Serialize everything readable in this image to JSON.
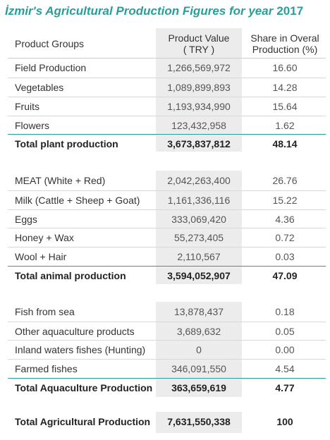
{
  "title": "İzmir's Agricultural Production Figures for year",
  "year": "2017",
  "header": {
    "groups": "Product Groups",
    "value_line1": "Product Value",
    "value_line2": "( TRY )",
    "share_line1": "Share in Overal",
    "share_line2": "Production (%)"
  },
  "rows": [
    {
      "name": "Field Production",
      "value": "1,266,569,972",
      "share": "16.60"
    },
    {
      "name": "Vegetables",
      "value": "1,089,899,893",
      "share": "14.28"
    },
    {
      "name": "Fruits",
      "value": "1,193,934,990",
      "share": "15.64"
    },
    {
      "name": "Flowers",
      "value": "123,432,958",
      "share": "1.62"
    },
    {
      "name": "Total plant production",
      "value": "3,673,837,812",
      "share": "48.14"
    },
    {
      "name": "MEAT (White + Red)",
      "value": "2,042,263,400",
      "share": "26.76"
    },
    {
      "name": "Milk (Cattle + Sheep + Goat)",
      "value": "1,161,336,116",
      "share": "15.22"
    },
    {
      "name": "Eggs",
      "value": "333,069,420",
      "share": "4.36"
    },
    {
      "name": "Honey + Wax",
      "value": "55,273,405",
      "share": "0.72"
    },
    {
      "name": "Wool + Hair",
      "value": "2,110,567",
      "share": "0.03"
    },
    {
      "name": "Total animal production",
      "value": "3,594,052,907",
      "share": "47.09"
    },
    {
      "name": "Fish from sea",
      "value": "13,878,437",
      "share": "0.18"
    },
    {
      "name": "Other aquaculture products",
      "value": "3,689,632",
      "share": "0.05"
    },
    {
      "name": "Inland waters fishes (Hunting)",
      "value": "0",
      "share": "0.00"
    },
    {
      "name": "Farmed fishes",
      "value": "346,091,550",
      "share": "4.54"
    },
    {
      "name": "Total Aquaculture Production",
      "value": "363,659,619",
      "share": "4.77"
    },
    {
      "name": "Total Agricultural Production",
      "value": "7,631,550,338",
      "share": "100"
    }
  ]
}
